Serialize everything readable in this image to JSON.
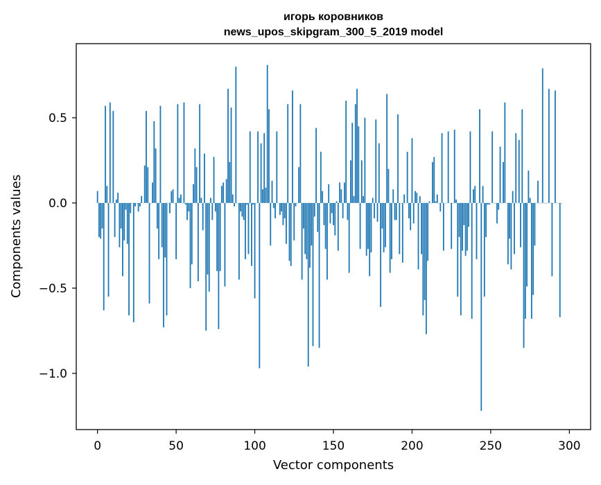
{
  "chart_data": {
    "type": "bar",
    "title": "игорь коровников",
    "subtitle": "news_upos_skipgram_300_5_2019 model",
    "xlabel": "Vector components",
    "ylabel": "Components values",
    "xlim": [
      -13.5,
      313.5
    ],
    "ylim": [
      -1.33,
      0.935
    ],
    "x_ticks": [
      0,
      50,
      100,
      150,
      200,
      250,
      300
    ],
    "x_tick_labels": [
      "0",
      "50",
      "100",
      "150",
      "200",
      "250",
      "300"
    ],
    "y_ticks": [
      -1.0,
      -0.5,
      0.0,
      0.5
    ],
    "y_tick_labels": [
      "−1.0",
      "−0.5",
      "0.0",
      "0.5"
    ],
    "grid": false,
    "bar_color": "#1f77b4",
    "series": [
      {
        "x_start": 0,
        "values": [
          0.07,
          -0.2,
          -0.21,
          -0.15,
          -0.63,
          0.57,
          0.1,
          -0.55,
          0.59,
          0.0,
          0.54,
          -0.2,
          0.02,
          0.06,
          -0.26,
          -0.15,
          -0.43,
          -0.22,
          -0.04,
          -0.24,
          -0.66,
          -0.06,
          0.0,
          -0.7,
          -0.02,
          0.0,
          -0.05,
          -0.02,
          0.04,
          0.0,
          0.22,
          0.54,
          0.21,
          -0.59,
          0.0,
          0.12,
          0.48,
          0.32,
          -0.15,
          -0.33,
          0.57,
          -0.26,
          -0.73,
          -0.32,
          -0.66,
          0.0,
          -0.06,
          0.07,
          0.08,
          0.0,
          -0.33,
          0.58,
          0.03,
          0.05,
          0.0,
          0.59,
          -0.01,
          -0.1,
          -0.05,
          -0.5,
          -0.36,
          0.11,
          0.32,
          0.21,
          -0.46,
          0.58,
          0.03,
          -0.16,
          0.29,
          -0.75,
          -0.42,
          -0.52,
          0.03,
          -0.1,
          0.27,
          -0.05,
          -0.4,
          -0.74,
          -0.4,
          0.1,
          0.12,
          -0.49,
          0.14,
          0.67,
          0.24,
          0.56,
          0.05,
          -0.02,
          0.8,
          0.0,
          -0.45,
          -0.05,
          -0.08,
          -0.1,
          -0.33,
          -0.01,
          -0.3,
          0.42,
          -0.37,
          -0.01,
          -0.56,
          0.0,
          0.42,
          -0.97,
          0.35,
          0.08,
          0.41,
          0.09,
          0.81,
          0.55,
          -0.25,
          0.13,
          -0.03,
          -0.09,
          0.42,
          0.0,
          -0.07,
          -0.05,
          -0.13,
          -0.09,
          -0.24,
          0.58,
          -0.34,
          -0.37,
          0.66,
          -0.22,
          -0.02,
          0.0,
          0.21,
          0.58,
          -0.45,
          -0.15,
          -0.3,
          -0.33,
          -0.96,
          -0.38,
          -0.25,
          -0.84,
          -0.08,
          0.44,
          -0.17,
          -0.85,
          0.3,
          0.07,
          -0.13,
          -0.27,
          -0.45,
          0.11,
          -0.12,
          -0.06,
          -0.13,
          -0.19,
          0.01,
          -0.28,
          0.12,
          0.08,
          -0.09,
          0.12,
          0.6,
          -0.1,
          -0.41,
          0.25,
          0.47,
          0.04,
          0.58,
          0.67,
          0.45,
          -0.27,
          0.25,
          0.04,
          0.5,
          -0.31,
          -0.27,
          -0.43,
          -0.29,
          0.03,
          -0.09,
          0.49,
          -0.11,
          0.35,
          -0.61,
          -0.15,
          -0.29,
          -0.26,
          0.64,
          0.2,
          -0.41,
          -0.33,
          0.08,
          -0.1,
          -0.1,
          0.52,
          -0.3,
          0.0,
          -0.35,
          0.05,
          0.0,
          0.3,
          -0.09,
          -0.16,
          0.38,
          -0.12,
          0.07,
          0.06,
          -0.39,
          0.04,
          -0.3,
          -0.66,
          -0.57,
          -0.77,
          -0.34,
          0.01,
          0.0,
          0.24,
          0.27,
          0.01,
          0.05,
          0.0,
          -0.05,
          0.41,
          -0.28,
          0.0,
          0.0,
          0.42,
          0.0,
          -0.27,
          0.0,
          0.43,
          0.02,
          -0.55,
          -0.2,
          -0.66,
          -0.28,
          -0.13,
          -0.31,
          -0.28,
          -0.14,
          0.42,
          -0.68,
          0.08,
          0.1,
          -0.33,
          0.0,
          0.55,
          -1.22,
          0.1,
          -0.55,
          -0.2,
          -0.01,
          -0.01,
          0.0,
          0.42,
          0.0,
          0.0,
          -0.12,
          -0.04,
          0.33,
          0.0,
          0.24,
          0.59,
          0.0,
          -0.36,
          -0.21,
          -0.39,
          0.07,
          -0.3,
          0.41,
          0.0,
          0.37,
          -0.26,
          0.55,
          -0.85,
          -0.68,
          -0.49,
          0.19,
          0.03,
          -0.68,
          -0.54,
          -0.25,
          0.0,
          0.13,
          0.0,
          0.0,
          0.79,
          0.0,
          0.0,
          0.0,
          0.67,
          0.0,
          -0.43,
          0.0,
          0.66,
          0.0,
          0.0,
          -0.67,
          0.0
        ]
      }
    ]
  }
}
